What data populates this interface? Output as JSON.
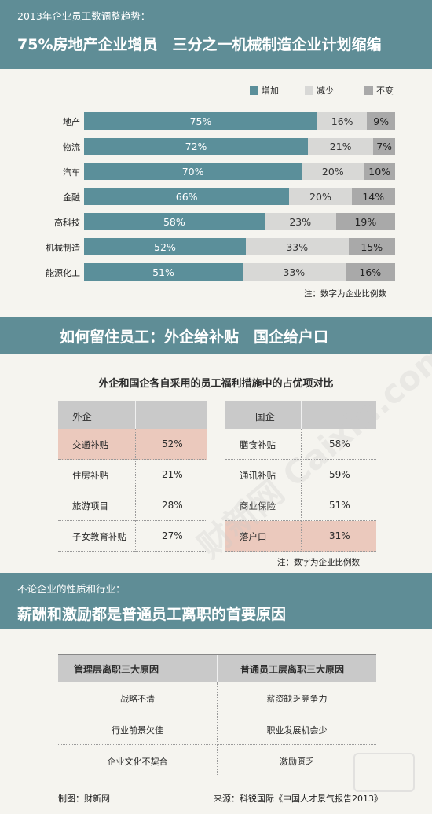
{
  "section1": {
    "subtitle": "2013年企业员工数调整趋势：",
    "title": "75%房地产企业增员　三分之一机械制造企业计划缩编"
  },
  "chart_data": {
    "type": "bar",
    "orientation": "horizontal",
    "stacked": true,
    "categories": [
      "地产",
      "物流",
      "汽车",
      "金融",
      "高科技",
      "机械制造",
      "能源化工"
    ],
    "series": [
      {
        "name": "增加",
        "values": [
          75,
          72,
          70,
          66,
          58,
          52,
          51
        ],
        "color": "#5b8f9a"
      },
      {
        "name": "减少",
        "values": [
          16,
          21,
          20,
          20,
          23,
          33,
          33
        ],
        "color": "#d8d8d6"
      },
      {
        "name": "不变",
        "values": [
          9,
          7,
          10,
          14,
          19,
          15,
          16
        ],
        "color": "#a9a9a9"
      }
    ],
    "xlim": [
      0,
      100
    ],
    "legend": "top-right",
    "note": "注：数字为企业比例数"
  },
  "section2": {
    "title": "如何留住员工：外企给补贴　国企给户口",
    "table_title": "外企和国企各自采用的员工福利措施中的占优项对比",
    "foreign": {
      "header": "外企",
      "rows": [
        {
          "label": "交通补贴",
          "value": "52%",
          "highlight": true
        },
        {
          "label": "住房补贴",
          "value": "21%",
          "highlight": false
        },
        {
          "label": "旅游项目",
          "value": "28%",
          "highlight": false
        },
        {
          "label": "子女教育补贴",
          "value": "27%",
          "highlight": false
        }
      ]
    },
    "state": {
      "header": "国企",
      "rows": [
        {
          "label": "膳食补贴",
          "value": "58%",
          "highlight": false
        },
        {
          "label": "通讯补贴",
          "value": "59%",
          "highlight": false
        },
        {
          "label": "商业保险",
          "value": "51%",
          "highlight": false
        },
        {
          "label": "落户口",
          "value": "31%",
          "highlight": true
        }
      ]
    },
    "note": "注：数字为企业比例数"
  },
  "section3": {
    "subtitle": "不论企业的性质和行业：",
    "title": "薪酬和激励都是普通员工离职的首要原因",
    "header_left": "管理层离职三大原因",
    "header_right": "普通员工层离职三大原因",
    "rows": [
      {
        "left": "战略不清",
        "right": "薪资缺乏竞争力"
      },
      {
        "left": "行业前景欠佳",
        "right": "职业发展机会少"
      },
      {
        "left": "企业文化不契合",
        "right": "激励匮乏"
      }
    ]
  },
  "footer": {
    "credit": "制图：财新网",
    "source": "来源：科锐国际《中国人才景气报告2013》"
  },
  "watermark": "财新网 Caixin.com"
}
